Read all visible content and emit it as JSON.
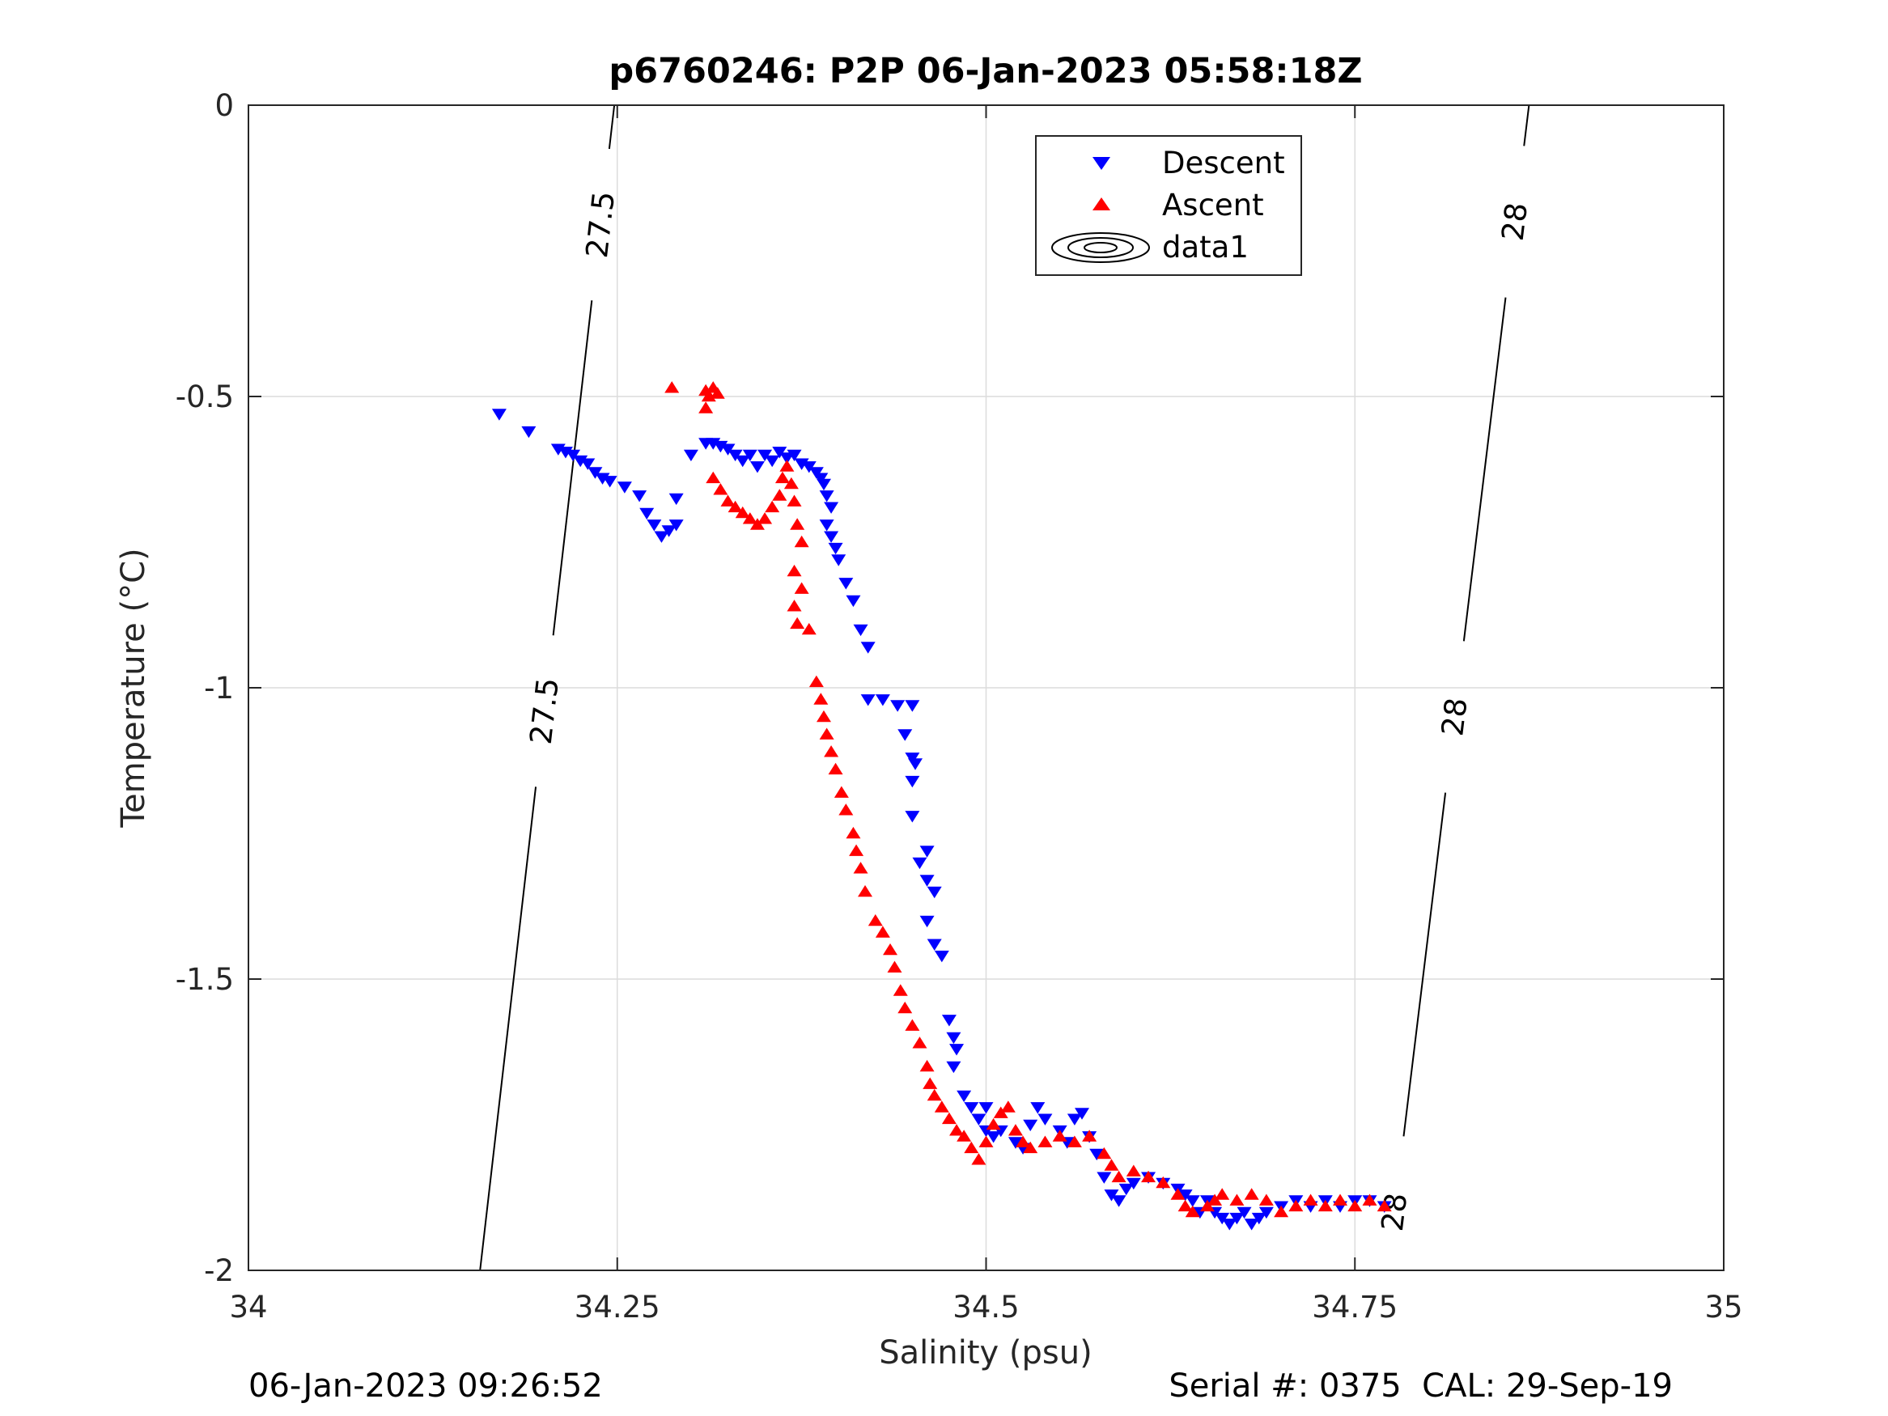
{
  "footer": {
    "left": "06-Jan-2023 09:26:52",
    "right": "Serial #: 0375  CAL: 29-Sep-19"
  },
  "chart_data": {
    "type": "scatter",
    "title": "p6760246: P2P 06-Jan-2023 05:58:18Z",
    "xlabel": "Salinity (psu)",
    "ylabel": "Temperature (°C)",
    "xlim": [
      34,
      35
    ],
    "ylim": [
      -2,
      0
    ],
    "xticks": [
      34,
      34.25,
      34.5,
      34.75,
      35
    ],
    "xtick_labels": [
      "34",
      "34.25",
      "34.5",
      "34.75",
      "35"
    ],
    "yticks": [
      0,
      -0.5,
      -1,
      -1.5,
      -2
    ],
    "ytick_labels": [
      "0",
      "-0.5",
      "-1",
      "-1.5",
      "-2"
    ],
    "grid": true,
    "legend_position": "top-center",
    "colors": {
      "descent": "#0000ff",
      "ascent": "#ff0000",
      "contour": "#000000",
      "grid": "#dcdcdc"
    },
    "contours": [
      {
        "level_label": "27.5",
        "points": [
          [
            34.157,
            -2
          ],
          [
            34.248,
            0
          ]
        ],
        "labels_at_y": [
          -0.205,
          -1.04
        ]
      },
      {
        "level_label": "28",
        "points": [
          [
            34.772,
            -2
          ],
          [
            34.868,
            0
          ]
        ],
        "labels_at_y": [
          -0.2,
          -1.05,
          -1.9
        ]
      }
    ],
    "series": [
      {
        "name": "Descent",
        "marker": "triangle-down",
        "points": [
          [
            34.17,
            -0.53
          ],
          [
            34.19,
            -0.56
          ],
          [
            34.21,
            -0.59
          ],
          [
            34.215,
            -0.595
          ],
          [
            34.22,
            -0.6
          ],
          [
            34.225,
            -0.61
          ],
          [
            34.23,
            -0.615
          ],
          [
            34.235,
            -0.63
          ],
          [
            34.24,
            -0.64
          ],
          [
            34.245,
            -0.645
          ],
          [
            34.255,
            -0.655
          ],
          [
            34.265,
            -0.67
          ],
          [
            34.27,
            -0.7
          ],
          [
            34.275,
            -0.72
          ],
          [
            34.28,
            -0.74
          ],
          [
            34.285,
            -0.73
          ],
          [
            34.29,
            -0.675
          ],
          [
            34.29,
            -0.72
          ],
          [
            34.3,
            -0.6
          ],
          [
            34.31,
            -0.58
          ],
          [
            34.315,
            -0.58
          ],
          [
            34.32,
            -0.585
          ],
          [
            34.325,
            -0.59
          ],
          [
            34.33,
            -0.6
          ],
          [
            34.335,
            -0.61
          ],
          [
            34.34,
            -0.6
          ],
          [
            34.345,
            -0.62
          ],
          [
            34.35,
            -0.6
          ],
          [
            34.355,
            -0.61
          ],
          [
            34.36,
            -0.595
          ],
          [
            34.365,
            -0.605
          ],
          [
            34.37,
            -0.6
          ],
          [
            34.375,
            -0.615
          ],
          [
            34.38,
            -0.62
          ],
          [
            34.385,
            -0.63
          ],
          [
            34.388,
            -0.64
          ],
          [
            34.39,
            -0.65
          ],
          [
            34.392,
            -0.67
          ],
          [
            34.395,
            -0.69
          ],
          [
            34.392,
            -0.72
          ],
          [
            34.395,
            -0.74
          ],
          [
            34.398,
            -0.76
          ],
          [
            34.4,
            -0.78
          ],
          [
            34.405,
            -0.82
          ],
          [
            34.41,
            -0.85
          ],
          [
            34.415,
            -0.9
          ],
          [
            34.42,
            -0.93
          ],
          [
            34.42,
            -1.02
          ],
          [
            34.43,
            -1.02
          ],
          [
            34.44,
            -1.03
          ],
          [
            34.445,
            -1.08
          ],
          [
            34.45,
            -1.03
          ],
          [
            34.45,
            -1.12
          ],
          [
            34.452,
            -1.13
          ],
          [
            34.45,
            -1.16
          ],
          [
            34.45,
            -1.22
          ],
          [
            34.455,
            -1.3
          ],
          [
            34.46,
            -1.33
          ],
          [
            34.46,
            -1.28
          ],
          [
            34.465,
            -1.35
          ],
          [
            34.46,
            -1.4
          ],
          [
            34.465,
            -1.44
          ],
          [
            34.47,
            -1.46
          ],
          [
            34.475,
            -1.57
          ],
          [
            34.478,
            -1.6
          ],
          [
            34.48,
            -1.62
          ],
          [
            34.478,
            -1.65
          ],
          [
            34.485,
            -1.7
          ],
          [
            34.49,
            -1.72
          ],
          [
            34.495,
            -1.74
          ],
          [
            34.5,
            -1.72
          ],
          [
            34.5,
            -1.76
          ],
          [
            34.505,
            -1.77
          ],
          [
            34.51,
            -1.76
          ],
          [
            34.52,
            -1.78
          ],
          [
            34.525,
            -1.79
          ],
          [
            34.53,
            -1.75
          ],
          [
            34.535,
            -1.72
          ],
          [
            34.54,
            -1.74
          ],
          [
            34.55,
            -1.76
          ],
          [
            34.555,
            -1.78
          ],
          [
            34.56,
            -1.74
          ],
          [
            34.565,
            -1.73
          ],
          [
            34.57,
            -1.77
          ],
          [
            34.575,
            -1.8
          ],
          [
            34.58,
            -1.84
          ],
          [
            34.585,
            -1.87
          ],
          [
            34.59,
            -1.88
          ],
          [
            34.595,
            -1.86
          ],
          [
            34.6,
            -1.85
          ],
          [
            34.61,
            -1.84
          ],
          [
            34.62,
            -1.85
          ],
          [
            34.63,
            -1.86
          ],
          [
            34.635,
            -1.87
          ],
          [
            34.64,
            -1.88
          ],
          [
            34.645,
            -1.9
          ],
          [
            34.65,
            -1.88
          ],
          [
            34.655,
            -1.9
          ],
          [
            34.66,
            -1.91
          ],
          [
            34.665,
            -1.92
          ],
          [
            34.67,
            -1.91
          ],
          [
            34.675,
            -1.9
          ],
          [
            34.68,
            -1.92
          ],
          [
            34.685,
            -1.91
          ],
          [
            34.69,
            -1.9
          ],
          [
            34.7,
            -1.89
          ],
          [
            34.71,
            -1.88
          ],
          [
            34.72,
            -1.89
          ],
          [
            34.73,
            -1.88
          ],
          [
            34.74,
            -1.89
          ],
          [
            34.75,
            -1.88
          ],
          [
            34.76,
            -1.88
          ],
          [
            34.77,
            -1.89
          ]
        ]
      },
      {
        "name": "Ascent",
        "marker": "triangle-up",
        "points": [
          [
            34.287,
            -0.485
          ],
          [
            34.31,
            -0.49
          ],
          [
            34.312,
            -0.5
          ],
          [
            34.315,
            -0.485
          ],
          [
            34.318,
            -0.495
          ],
          [
            34.31,
            -0.52
          ],
          [
            34.315,
            -0.64
          ],
          [
            34.32,
            -0.66
          ],
          [
            34.325,
            -0.68
          ],
          [
            34.33,
            -0.69
          ],
          [
            34.335,
            -0.7
          ],
          [
            34.34,
            -0.71
          ],
          [
            34.345,
            -0.72
          ],
          [
            34.35,
            -0.71
          ],
          [
            34.355,
            -0.69
          ],
          [
            34.36,
            -0.67
          ],
          [
            34.362,
            -0.64
          ],
          [
            34.365,
            -0.62
          ],
          [
            34.368,
            -0.65
          ],
          [
            34.37,
            -0.68
          ],
          [
            34.372,
            -0.72
          ],
          [
            34.375,
            -0.75
          ],
          [
            34.37,
            -0.8
          ],
          [
            34.375,
            -0.83
          ],
          [
            34.37,
            -0.86
          ],
          [
            34.372,
            -0.89
          ],
          [
            34.38,
            -0.9
          ],
          [
            34.385,
            -0.99
          ],
          [
            34.388,
            -1.02
          ],
          [
            34.39,
            -1.05
          ],
          [
            34.392,
            -1.08
          ],
          [
            34.395,
            -1.11
          ],
          [
            34.398,
            -1.14
          ],
          [
            34.402,
            -1.18
          ],
          [
            34.405,
            -1.21
          ],
          [
            34.41,
            -1.25
          ],
          [
            34.412,
            -1.28
          ],
          [
            34.415,
            -1.31
          ],
          [
            34.418,
            -1.35
          ],
          [
            34.425,
            -1.4
          ],
          [
            34.43,
            -1.42
          ],
          [
            34.435,
            -1.45
          ],
          [
            34.438,
            -1.48
          ],
          [
            34.442,
            -1.52
          ],
          [
            34.445,
            -1.55
          ],
          [
            34.45,
            -1.58
          ],
          [
            34.455,
            -1.61
          ],
          [
            34.46,
            -1.65
          ],
          [
            34.462,
            -1.68
          ],
          [
            34.465,
            -1.7
          ],
          [
            34.47,
            -1.72
          ],
          [
            34.475,
            -1.74
          ],
          [
            34.48,
            -1.76
          ],
          [
            34.485,
            -1.77
          ],
          [
            34.49,
            -1.79
          ],
          [
            34.495,
            -1.81
          ],
          [
            34.5,
            -1.78
          ],
          [
            34.505,
            -1.75
          ],
          [
            34.51,
            -1.73
          ],
          [
            34.515,
            -1.72
          ],
          [
            34.52,
            -1.76
          ],
          [
            34.525,
            -1.78
          ],
          [
            34.53,
            -1.79
          ],
          [
            34.54,
            -1.78
          ],
          [
            34.55,
            -1.77
          ],
          [
            34.56,
            -1.78
          ],
          [
            34.57,
            -1.77
          ],
          [
            34.58,
            -1.8
          ],
          [
            34.585,
            -1.82
          ],
          [
            34.59,
            -1.84
          ],
          [
            34.6,
            -1.83
          ],
          [
            34.61,
            -1.84
          ],
          [
            34.62,
            -1.85
          ],
          [
            34.63,
            -1.87
          ],
          [
            34.635,
            -1.89
          ],
          [
            34.64,
            -1.9
          ],
          [
            34.65,
            -1.89
          ],
          [
            34.655,
            -1.88
          ],
          [
            34.66,
            -1.87
          ],
          [
            34.67,
            -1.88
          ],
          [
            34.68,
            -1.87
          ],
          [
            34.69,
            -1.88
          ],
          [
            34.7,
            -1.9
          ],
          [
            34.71,
            -1.89
          ],
          [
            34.72,
            -1.88
          ],
          [
            34.73,
            -1.89
          ],
          [
            34.74,
            -1.88
          ],
          [
            34.75,
            -1.89
          ],
          [
            34.76,
            -1.88
          ],
          [
            34.77,
            -1.89
          ]
        ]
      }
    ],
    "legend": [
      {
        "label": "Descent",
        "marker": "triangle-down"
      },
      {
        "label": "Ascent",
        "marker": "triangle-up"
      },
      {
        "label": "data1",
        "marker": "contour"
      }
    ]
  }
}
